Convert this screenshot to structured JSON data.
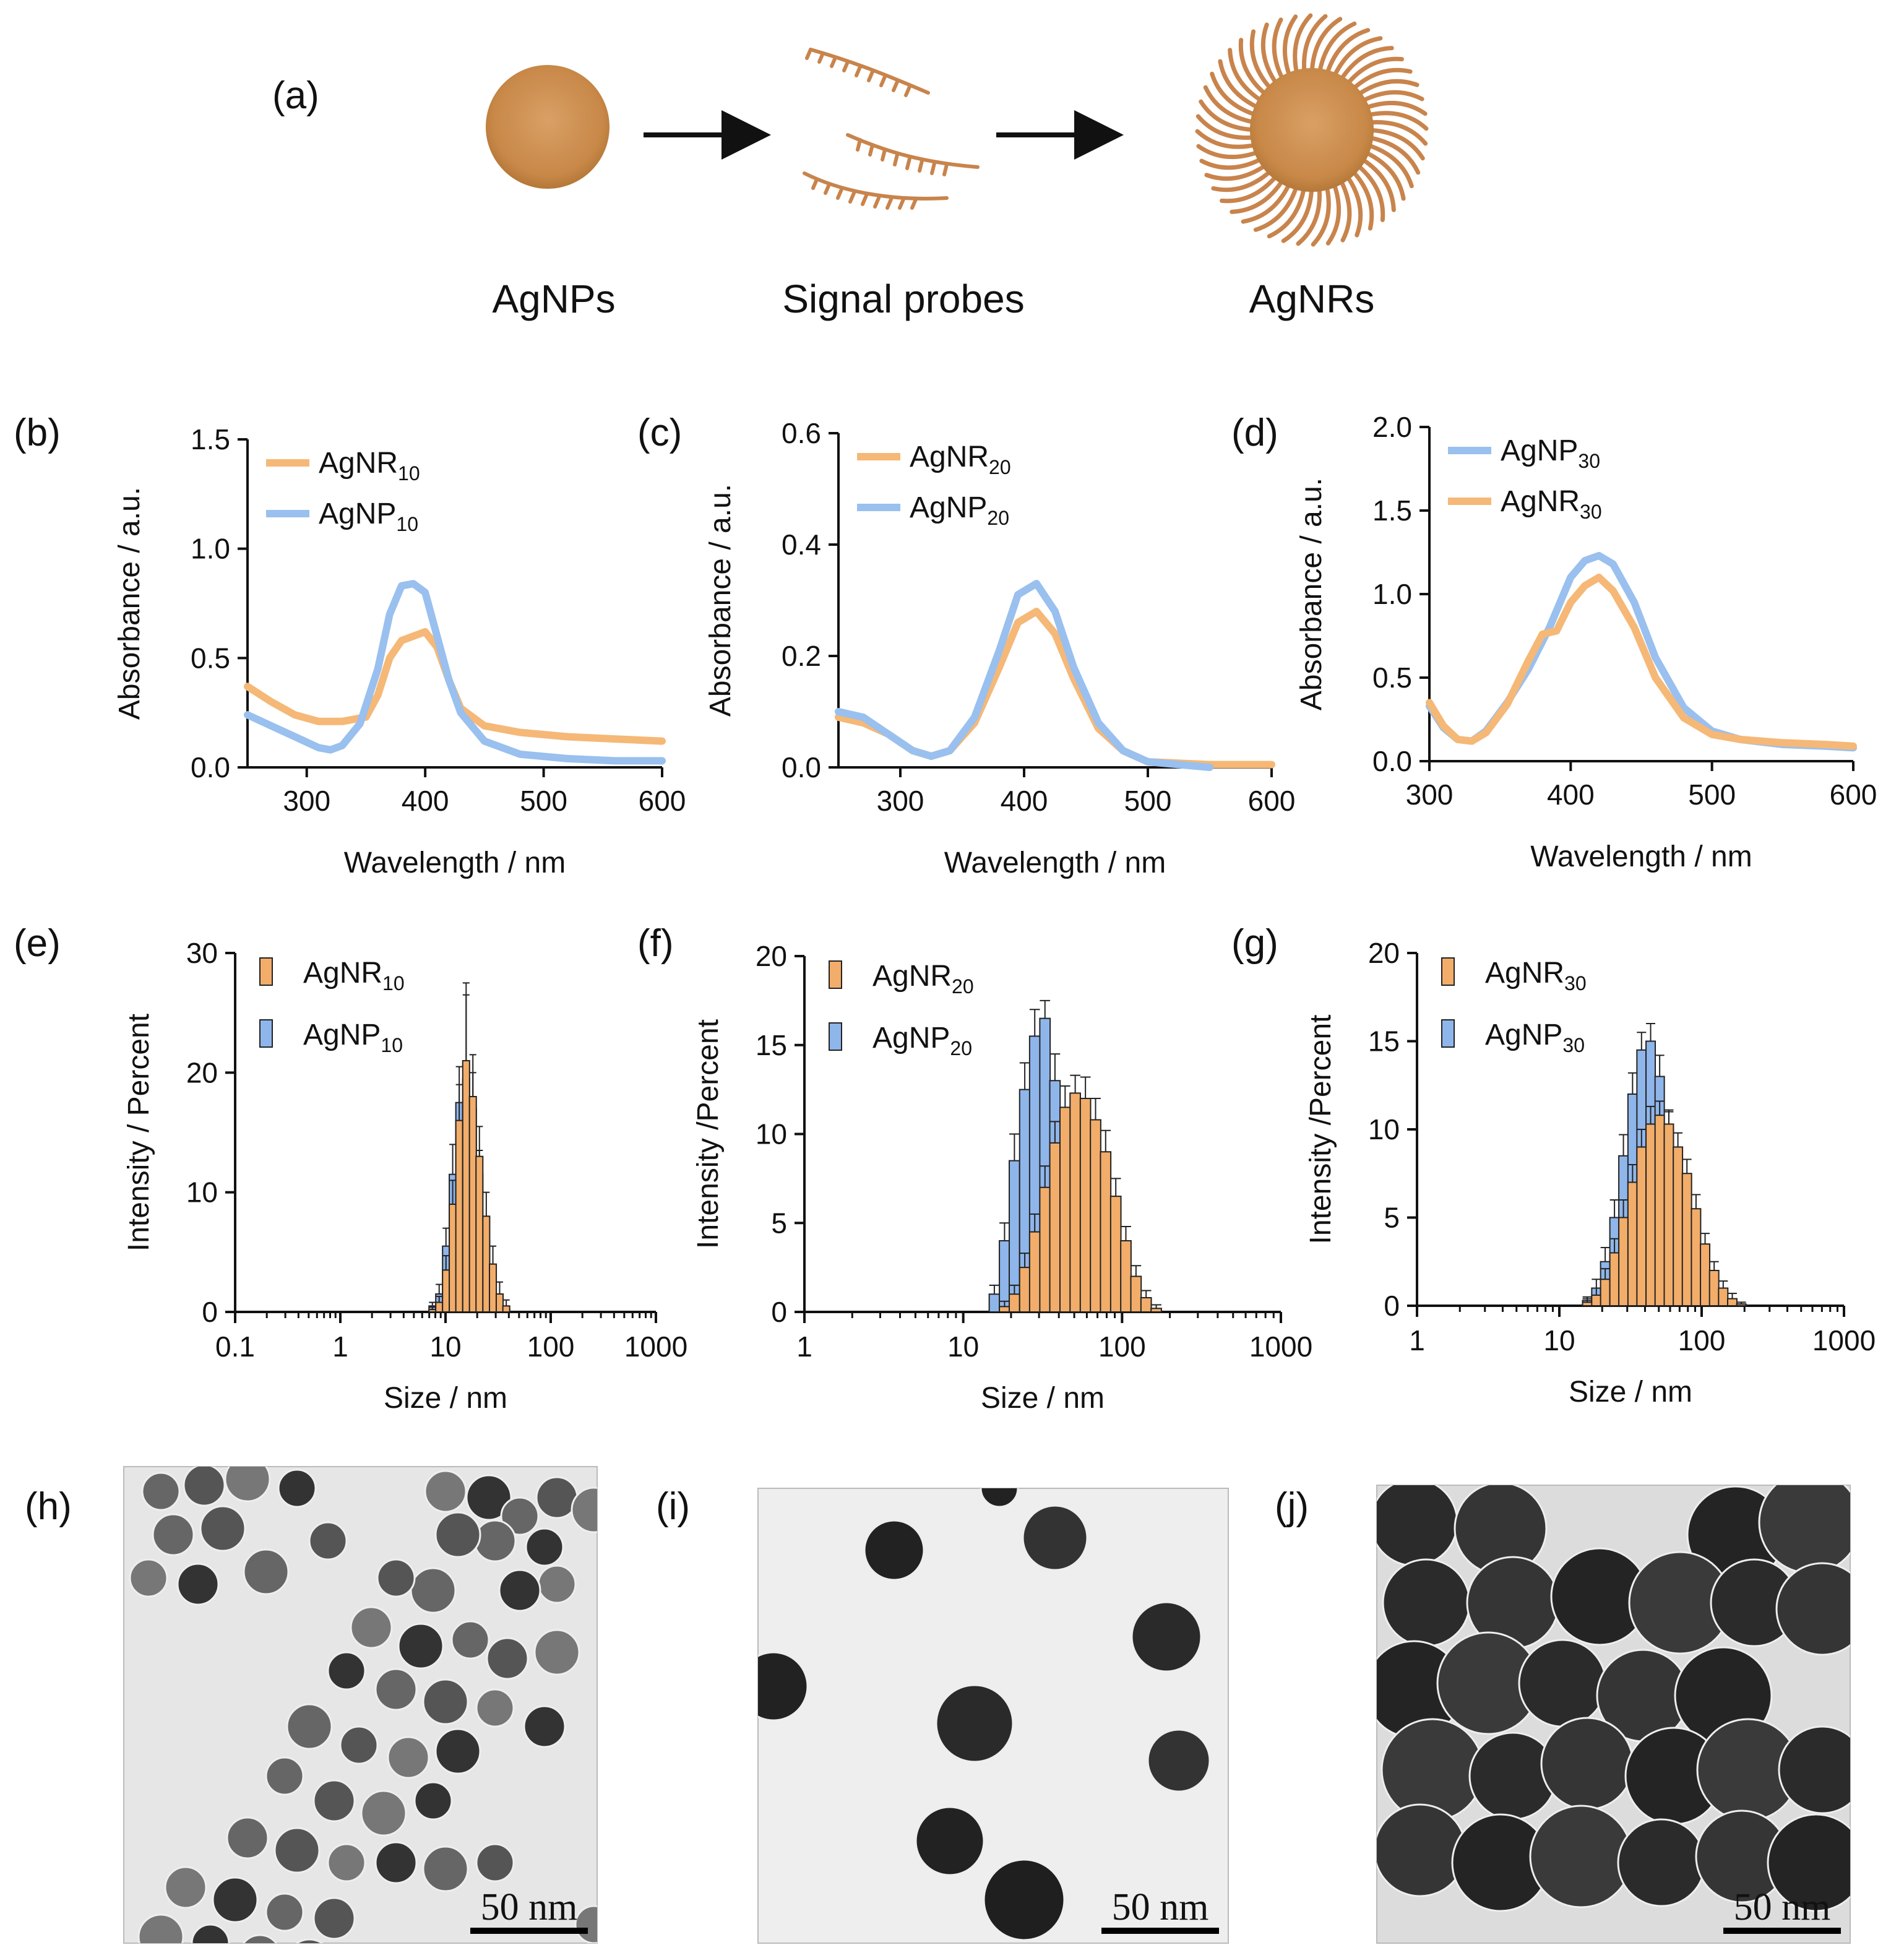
{
  "colors": {
    "agnr": "#f5b877",
    "agnp": "#99c0ee",
    "agnr_bar": "#f2ad6a",
    "agnp_bar": "#8fb6ea",
    "probe": "#c8844c"
  },
  "panels": {
    "a": {
      "label": "(a)",
      "captions": [
        "AgNPs",
        "Signal probes",
        "AgNRs"
      ]
    },
    "b": {
      "label": "(b)"
    },
    "c": {
      "label": "(c)"
    },
    "d": {
      "label": "(d)"
    },
    "e": {
      "label": "(e)"
    },
    "f": {
      "label": "(f)"
    },
    "g": {
      "label": "(g)"
    },
    "h": {
      "label": "(h)",
      "scale_bar": "50 nm"
    },
    "i": {
      "label": "(i)",
      "scale_bar": "50 nm"
    },
    "j": {
      "label": "(j)",
      "scale_bar": "50 nm"
    }
  },
  "chart_data": [
    {
      "panel": "b",
      "type": "line",
      "xlabel": "Wavelength / nm",
      "ylabel": "Absorbance / a.u.",
      "xlim": [
        250,
        600
      ],
      "ylim": [
        0,
        1.5
      ],
      "xticks": [
        300,
        400,
        500,
        600
      ],
      "yticks": [
        0.0,
        0.5,
        1.0,
        1.5
      ],
      "tick_labels_y": [
        "0.0",
        "0.5",
        "1.0",
        "1.5"
      ],
      "series": [
        {
          "name": "AgNR",
          "sub": "10",
          "color_key": "agnr",
          "x": [
            250,
            270,
            290,
            310,
            330,
            350,
            360,
            370,
            380,
            390,
            400,
            410,
            420,
            430,
            450,
            480,
            520,
            560,
            600
          ],
          "y": [
            0.37,
            0.3,
            0.24,
            0.21,
            0.21,
            0.23,
            0.33,
            0.5,
            0.58,
            0.6,
            0.62,
            0.55,
            0.4,
            0.27,
            0.19,
            0.16,
            0.14,
            0.13,
            0.12
          ]
        },
        {
          "name": "AgNP",
          "sub": "10",
          "color_key": "agnp",
          "x": [
            250,
            270,
            290,
            310,
            320,
            330,
            345,
            360,
            370,
            380,
            390,
            400,
            410,
            420,
            430,
            450,
            480,
            520,
            560,
            600
          ],
          "y": [
            0.24,
            0.19,
            0.14,
            0.09,
            0.08,
            0.1,
            0.2,
            0.45,
            0.7,
            0.83,
            0.84,
            0.8,
            0.6,
            0.4,
            0.25,
            0.12,
            0.06,
            0.04,
            0.03,
            0.03
          ]
        }
      ]
    },
    {
      "panel": "c",
      "type": "line",
      "xlabel": "Wavelength / nm",
      "ylabel": "Absorbance / a.u.",
      "xlim": [
        250,
        600
      ],
      "ylim": [
        0,
        0.6
      ],
      "xticks": [
        300,
        400,
        500,
        600
      ],
      "yticks": [
        0.0,
        0.2,
        0.4,
        0.6
      ],
      "tick_labels_y": [
        "0.0",
        "0.2",
        "0.4",
        "0.6"
      ],
      "series": [
        {
          "name": "AgNR",
          "sub": "20",
          "color_key": "agnr",
          "x": [
            250,
            270,
            290,
            310,
            325,
            340,
            360,
            380,
            395,
            410,
            425,
            440,
            460,
            480,
            500,
            550,
            600
          ],
          "y": [
            0.09,
            0.08,
            0.06,
            0.03,
            0.02,
            0.03,
            0.08,
            0.18,
            0.26,
            0.28,
            0.24,
            0.16,
            0.07,
            0.03,
            0.01,
            0.005,
            0.005
          ]
        },
        {
          "name": "AgNP",
          "sub": "20",
          "color_key": "agnp",
          "x": [
            250,
            270,
            290,
            310,
            325,
            340,
            360,
            380,
            395,
            410,
            425,
            440,
            460,
            480,
            500,
            550
          ],
          "y": [
            0.1,
            0.09,
            0.06,
            0.03,
            0.02,
            0.03,
            0.09,
            0.21,
            0.31,
            0.33,
            0.28,
            0.18,
            0.08,
            0.03,
            0.01,
            0.0
          ]
        }
      ]
    },
    {
      "panel": "d",
      "type": "line",
      "xlabel": "Wavelength / nm",
      "ylabel": "Absorbance / a.u.",
      "xlim": [
        300,
        600
      ],
      "ylim": [
        0,
        2.0
      ],
      "xticks": [
        300,
        400,
        500,
        600
      ],
      "yticks": [
        0.0,
        0.5,
        1.0,
        1.5,
        2.0
      ],
      "tick_labels_y": [
        "0.0",
        "0.5",
        "1.0",
        "1.5",
        "2.0"
      ],
      "series": [
        {
          "name": "AgNP",
          "sub": "30",
          "color_key": "agnp",
          "x": [
            300,
            310,
            320,
            330,
            340,
            355,
            370,
            385,
            400,
            410,
            420,
            430,
            445,
            460,
            480,
            500,
            520,
            550,
            580,
            600
          ],
          "y": [
            0.33,
            0.2,
            0.13,
            0.12,
            0.18,
            0.35,
            0.55,
            0.8,
            1.1,
            1.2,
            1.23,
            1.18,
            0.95,
            0.62,
            0.32,
            0.18,
            0.13,
            0.1,
            0.09,
            0.08
          ]
        },
        {
          "name": "AgNR",
          "sub": "30",
          "color_key": "agnr",
          "x": [
            300,
            310,
            320,
            330,
            340,
            355,
            370,
            380,
            390,
            400,
            410,
            420,
            430,
            445,
            460,
            480,
            500,
            520,
            550,
            580,
            600
          ],
          "y": [
            0.35,
            0.21,
            0.13,
            0.12,
            0.17,
            0.34,
            0.6,
            0.76,
            0.78,
            0.95,
            1.05,
            1.1,
            1.02,
            0.8,
            0.5,
            0.26,
            0.16,
            0.13,
            0.11,
            0.1,
            0.09
          ]
        }
      ]
    },
    {
      "panel": "e",
      "type": "bar",
      "xscale": "log",
      "xlabel": "Size / nm",
      "ylabel": "Intensity / Percent",
      "xlim": [
        0.1,
        1000
      ],
      "ylim": [
        0,
        30
      ],
      "xtick_labels": [
        "0.1",
        "1",
        "10",
        "100",
        "1000"
      ],
      "yticks": [
        0,
        10,
        20,
        30
      ],
      "series": [
        {
          "name": "AgNP",
          "sub": "10",
          "color_key": "agnp_bar",
          "x": [
            7.5,
            8.7,
            10.1,
            11.7,
            13.5,
            15.7,
            18.2,
            21.0,
            24.4,
            28.2,
            32.7,
            37.8
          ],
          "y": [
            0.5,
            1.5,
            5.5,
            11.5,
            17.5,
            19.5,
            17.0,
            11.5,
            6.0,
            2.5,
            0.8,
            0.2
          ],
          "err": [
            0.3,
            0.8,
            1.5,
            2.5,
            3.0,
            7.0,
            3.0,
            2.0,
            1.5,
            1.0,
            0.5,
            0.2
          ]
        },
        {
          "name": "AgNR",
          "sub": "10",
          "color_key": "agnr_bar",
          "x": [
            7.5,
            8.7,
            10.1,
            11.7,
            13.5,
            15.7,
            18.2,
            21.0,
            24.4,
            28.2,
            32.7,
            37.8
          ],
          "y": [
            0.2,
            0.8,
            3.5,
            9.0,
            16.0,
            21.0,
            18.0,
            13.0,
            8.0,
            4.0,
            1.5,
            0.5
          ],
          "err": [
            0.2,
            0.5,
            1.2,
            2.0,
            3.0,
            6.5,
            3.5,
            2.5,
            2.0,
            1.5,
            1.0,
            0.5
          ]
        }
      ]
    },
    {
      "panel": "f",
      "type": "bar",
      "xscale": "log",
      "xlabel": "Size / nm",
      "ylabel": "Intensity /Percent",
      "xlim": [
        1,
        1000
      ],
      "ylim": [
        0,
        20
      ],
      "xtick_labels": [
        "1",
        "10",
        "100",
        "1000"
      ],
      "yticks": [
        0,
        5,
        10,
        15,
        20
      ],
      "series": [
        {
          "name": "AgNP",
          "sub": "20",
          "color_key": "agnp_bar",
          "x": [
            15.7,
            18.2,
            21.0,
            24.4,
            28.2,
            32.7,
            37.8,
            43.8,
            50.7,
            58.8,
            68.1,
            78.8,
            91.3,
            105.7
          ],
          "y": [
            1.0,
            4.0,
            8.5,
            12.5,
            15.5,
            16.5,
            13.0,
            9.0,
            6.0,
            3.5,
            2.0,
            1.0,
            0.4,
            0.1
          ],
          "err": [
            0.5,
            1.0,
            1.5,
            1.5,
            1.5,
            1.0,
            1.5,
            1.5,
            1.0,
            1.0,
            0.8,
            0.5,
            0.3,
            0.1
          ]
        },
        {
          "name": "AgNR",
          "sub": "20",
          "color_key": "agnr_bar",
          "x": [
            18.2,
            21.0,
            24.4,
            28.2,
            32.7,
            37.8,
            43.8,
            50.7,
            58.8,
            68.1,
            78.8,
            91.3,
            105.7,
            122.4,
            141.7,
            164.1
          ],
          "y": [
            0.3,
            1.0,
            2.5,
            4.5,
            7.0,
            9.5,
            11.5,
            12.3,
            12.0,
            10.8,
            9.0,
            6.5,
            4.0,
            2.0,
            0.8,
            0.2
          ],
          "err": [
            0.3,
            0.5,
            0.8,
            1.0,
            1.2,
            1.2,
            1.2,
            1.0,
            1.2,
            1.2,
            1.2,
            1.0,
            0.8,
            0.6,
            0.4,
            0.2
          ]
        }
      ]
    },
    {
      "panel": "g",
      "type": "bar",
      "xscale": "log",
      "xlabel": "Size / nm",
      "ylabel": "Intensity /Percent",
      "xlim": [
        1,
        1000
      ],
      "ylim": [
        0,
        20
      ],
      "xtick_labels": [
        "1",
        "10",
        "100",
        "1000"
      ],
      "yticks": [
        0,
        5,
        10,
        15,
        20
      ],
      "series": [
        {
          "name": "AgNP",
          "sub": "30",
          "color_key": "agnp_bar",
          "x": [
            15.7,
            18.2,
            21.0,
            24.4,
            28.2,
            32.7,
            37.8,
            43.8,
            50.7,
            58.8,
            68.1,
            78.8,
            91.3,
            105.7,
            122.4
          ],
          "y": [
            0.3,
            1.0,
            2.5,
            5.0,
            8.5,
            12.0,
            14.5,
            15.0,
            13.0,
            10.0,
            7.0,
            4.5,
            2.5,
            1.2,
            0.4
          ],
          "err": [
            0.2,
            0.5,
            0.8,
            1.0,
            1.2,
            1.2,
            1.0,
            1.0,
            1.2,
            1.0,
            1.0,
            0.8,
            0.6,
            0.4,
            0.2
          ]
        },
        {
          "name": "AgNR",
          "sub": "30",
          "color_key": "agnr_bar",
          "x": [
            15.7,
            18.2,
            21.0,
            24.4,
            28.2,
            32.7,
            37.8,
            43.8,
            50.7,
            58.8,
            68.1,
            78.8,
            91.3,
            105.7,
            122.4,
            141.7,
            164.1,
            190.0
          ],
          "y": [
            0.2,
            0.6,
            1.5,
            3.0,
            5.0,
            7.0,
            9.0,
            10.3,
            10.8,
            10.3,
            9.0,
            7.5,
            5.5,
            3.5,
            2.0,
            1.0,
            0.4,
            0.1
          ],
          "err": [
            0.2,
            0.4,
            0.6,
            0.8,
            1.0,
            1.0,
            1.0,
            1.0,
            0.8,
            0.8,
            0.8,
            0.8,
            0.8,
            0.6,
            0.5,
            0.4,
            0.3,
            0.1
          ]
        }
      ]
    }
  ]
}
